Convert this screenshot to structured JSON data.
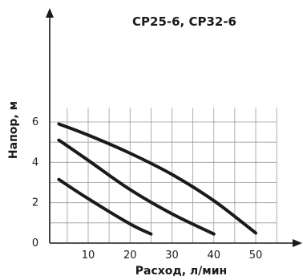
{
  "chart_data": {
    "type": "line",
    "title": "CP25-6, CP32-6",
    "xlabel": "Расход, л/мин",
    "ylabel": "Напор, м",
    "x_ticks": [
      10,
      20,
      30,
      40,
      50
    ],
    "y_ticks": [
      0,
      2,
      4,
      6
    ],
    "xlim": [
      0,
      60
    ],
    "ylim": [
      0,
      7
    ],
    "grid": true,
    "series": [
      {
        "x": [
          3,
          10,
          20,
          30,
          40,
          50
        ],
        "y": [
          5.9,
          5.35,
          4.45,
          3.4,
          2.1,
          0.5
        ]
      },
      {
        "x": [
          3,
          10,
          20,
          30,
          40
        ],
        "y": [
          5.1,
          4.1,
          2.65,
          1.45,
          0.45
        ]
      },
      {
        "x": [
          3,
          10,
          20,
          25
        ],
        "y": [
          3.15,
          2.2,
          0.95,
          0.45
        ]
      }
    ]
  }
}
